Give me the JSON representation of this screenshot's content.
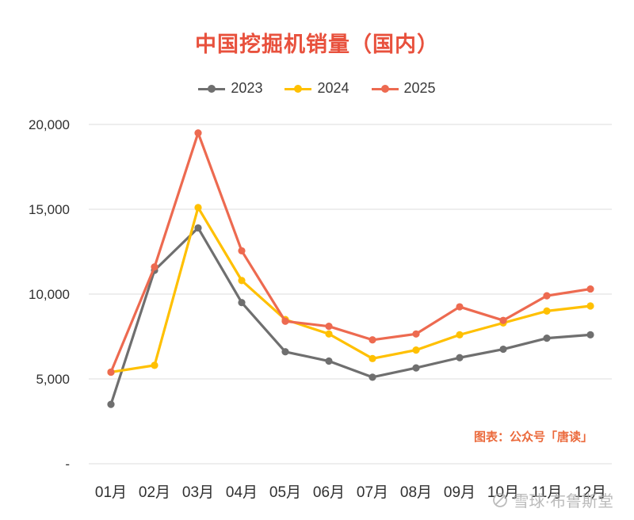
{
  "note": "图表：公众号「唐读」",
  "watermark": {
    "text": "雪球·布鲁斯堂",
    "icon": "xueqiu-logo"
  },
  "colors": {
    "title": "#E8513D",
    "note": "#EB6A3C",
    "grid": "#DCDCDC",
    "axis_text": "#303030",
    "watermark": "#ABABAB"
  },
  "chart_data": {
    "type": "line",
    "title": "中国挖掘机销量（国内）",
    "categories": [
      "01月",
      "02月",
      "03月",
      "04月",
      "05月",
      "06月",
      "07月",
      "08月",
      "09月",
      "10月",
      "11月",
      "12月"
    ],
    "series": [
      {
        "name": "2023",
        "color": "#6F6F6F",
        "values": [
          3500,
          11400,
          13900,
          9500,
          6600,
          6050,
          5100,
          5650,
          6250,
          6750,
          7400,
          7600
        ]
      },
      {
        "name": "2024",
        "color": "#FFC000",
        "values": [
          5400,
          5800,
          15100,
          10800,
          8500,
          7650,
          6200,
          6700,
          7600,
          8300,
          9000,
          9300
        ]
      },
      {
        "name": "2025",
        "color": "#ED6A50",
        "values": [
          5400,
          11600,
          19500,
          12550,
          8400,
          8100,
          7300,
          7650,
          9250,
          8450,
          9900,
          10300
        ]
      }
    ],
    "ylim": [
      0,
      20000
    ],
    "yticks": [
      {
        "value": 0,
        "label": "-"
      },
      {
        "value": 5000,
        "label": "5,000"
      },
      {
        "value": 10000,
        "label": "10,000"
      },
      {
        "value": 15000,
        "label": "15,000"
      },
      {
        "value": 20000,
        "label": "20,000"
      }
    ],
    "legend_position": "top",
    "grid": "horizontal"
  }
}
